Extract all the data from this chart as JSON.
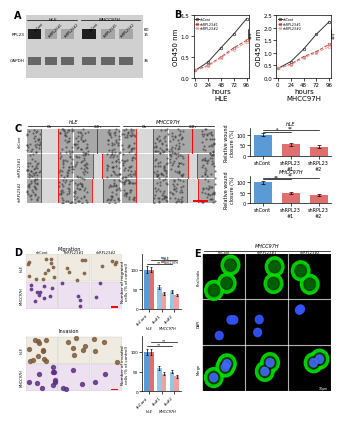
{
  "panel_A": {
    "conditions": [
      "shCont",
      "shRPL23#1",
      "shRPL23#2"
    ],
    "proteins": [
      "RPL23",
      "GAPDH"
    ],
    "kd_values": [
      "15",
      "36"
    ],
    "cell_lines": [
      "HLE",
      "MHCC97H"
    ]
  },
  "panel_B": {
    "timepoints": [
      0,
      24,
      48,
      72,
      96
    ],
    "HLE": {
      "shCont": [
        0.18,
        0.38,
        0.72,
        1.05,
        1.42
      ],
      "shRPL23_1": [
        0.18,
        0.3,
        0.5,
        0.72,
        0.9
      ],
      "shRPL23_2": [
        0.18,
        0.28,
        0.48,
        0.68,
        0.85
      ]
    },
    "MHCC97H": {
      "shCont": [
        0.38,
        0.65,
        1.15,
        1.75,
        2.25
      ],
      "shRPL23_1": [
        0.38,
        0.55,
        0.85,
        1.05,
        1.35
      ],
      "shRPL23_2": [
        0.38,
        0.52,
        0.8,
        1.0,
        1.25
      ]
    },
    "ylim_HLE": [
      0.0,
      1.5
    ],
    "ylim_MHCC": [
      0.0,
      2.5
    ],
    "yticks_HLE": [
      0.0,
      0.5,
      1.0,
      1.5
    ],
    "yticks_MHCC": [
      0.0,
      0.5,
      1.0,
      1.5,
      2.0,
      2.5
    ]
  },
  "panel_C": {
    "bar_data_HLE": {
      "shCont": 100,
      "shRPL23_1": 55,
      "shRPL23_2": 45
    },
    "bar_data_MHCC": {
      "shCont": 100,
      "shRPL23_1": 50,
      "shRPL23_2": 40
    },
    "bar_colors": [
      "#5b9bd5",
      "#e07070",
      "#e07070"
    ],
    "err_HLE": [
      8,
      6,
      5
    ],
    "err_MHCC": [
      7,
      5,
      4
    ],
    "ylabel": "Relative wound\nclosure (%)",
    "ylim": [
      0,
      130
    ]
  },
  "panel_D": {
    "migration_bar": {
      "HLE": [
        100,
        55,
        45
      ],
      "MHCC97H": [
        100,
        40,
        35
      ]
    },
    "invasion_bar": {
      "HLE": [
        100,
        60,
        50
      ],
      "MHCC97H": [
        100,
        45,
        38
      ]
    },
    "migration_err": {
      "HLE": [
        8,
        5,
        4
      ],
      "MHCC97H": [
        7,
        4,
        3
      ]
    },
    "invasion_err": {
      "HLE": [
        8,
        5,
        4
      ],
      "MHCC97H": [
        7,
        4,
        3
      ]
    },
    "bar_colors_HLE": [
      "#5b9bd5",
      "#90c8e8",
      "#90c8e8"
    ],
    "bar_colors_MHCC": [
      "#e07070",
      "#f0a0a0",
      "#f0a0a0"
    ],
    "ylabel_migration": "Number of migrated\ncells (% of control)",
    "ylabel_invasion": "Number of invaded\ncells (% of control)",
    "ylim": [
      0,
      140
    ]
  },
  "background_color": "#ffffff",
  "panel_label_size": 7,
  "tick_fontsize": 4.5,
  "axis_label_fontsize": 5,
  "line_colors": [
    "#333333",
    "#c0392b",
    "#e8a0a0"
  ],
  "line_styles": [
    "-",
    "--",
    "--"
  ],
  "legend_labels": [
    "shCont",
    "shRPL23#1",
    "shRPL23#2"
  ],
  "conditions_3": [
    "shCont",
    "shRPL23#1",
    "shRPL23#2"
  ]
}
